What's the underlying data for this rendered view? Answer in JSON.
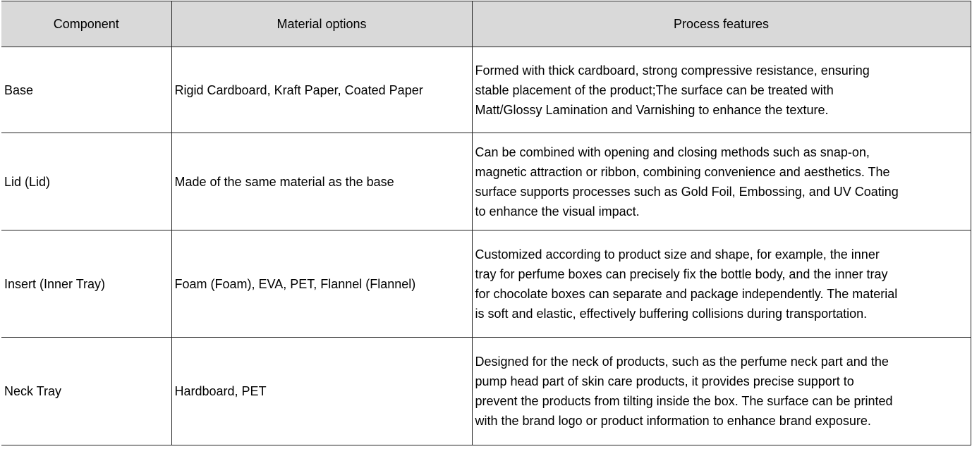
{
  "headers": [
    "Component",
    "Material options",
    "Process features"
  ],
  "rows": [
    {
      "component": "Base",
      "materials": "Rigid Cardboard, Kraft Paper, Coated Paper",
      "features": [
        "Formed with thick cardboard, strong compressive resistance, ensuring",
        "stable placement of the product;The surface can be treated with",
        "Matt/Glossy Lamination and Varnishing to enhance the texture."
      ]
    },
    {
      "component": "Lid (Lid)",
      "materials": "Made of the same material as the base",
      "features": [
        "Can be combined with opening and closing methods such as snap-on,",
        "magnetic attraction or ribbon, combining convenience and aesthetics. The",
        "surface supports processes such as Gold Foil, Embossing, and UV Coating",
        "to enhance the visual impact."
      ]
    },
    {
      "component": "Insert (Inner Tray)",
      "materials": "Foam (Foam), EVA, PET, Flannel (Flannel)",
      "features": [
        "Customized according to product size and shape, for example, the inner",
        "tray for perfume boxes can precisely fix the bottle body, and the inner tray",
        "for chocolate boxes can separate and package independently. The material",
        "is soft and elastic, effectively buffering collisions during transportation."
      ]
    },
    {
      "component": "Neck Tray",
      "materials": "Hardboard, PET",
      "features": [
        "Designed for the neck of products, such as the perfume neck part and the",
        "pump head part of skin care products, it provides precise support to",
        "prevent the products from tilting inside the box. The surface can be printed",
        "with the brand logo or product information to enhance brand exposure."
      ]
    }
  ]
}
